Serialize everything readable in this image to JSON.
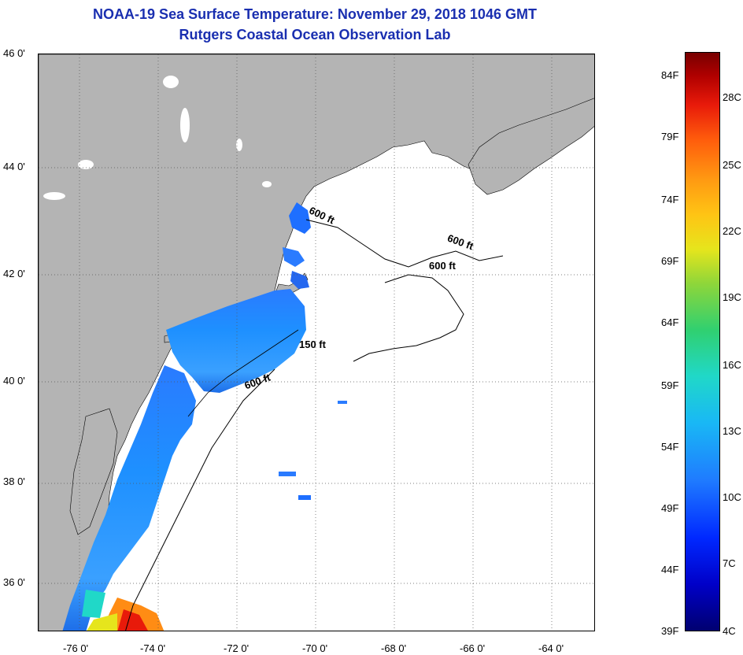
{
  "title": {
    "line1": "NOAA-19 Sea Surface Temperature:  November 29, 2018 1046 GMT",
    "line2": "Rutgers Coastal Ocean Observation Lab"
  },
  "map": {
    "lon_range": [
      -77,
      -63
    ],
    "lat_range": [
      35,
      46
    ],
    "lat_labels": [
      "46 0'",
      "44 0'",
      "42 0'",
      "40 0'",
      "38 0'",
      "36 0'"
    ],
    "lon_labels": [
      "-76 0'",
      "-74 0'",
      "-72 0'",
      "-70 0'",
      "-68 0'",
      "-66 0'",
      "-64 0'"
    ],
    "contour_labels": [
      "600 ft",
      "600 ft",
      "600 ft",
      "150 ft",
      "600 ft"
    ],
    "colors": {
      "land": "#b4b4b4",
      "ocean_no_data": "#ffffff",
      "title": "#1a2fb0"
    }
  },
  "colorbar": {
    "fahrenheit_labels": [
      "84F",
      "79F",
      "74F",
      "69F",
      "64F",
      "59F",
      "54F",
      "49F",
      "44F",
      "39F"
    ],
    "celsius_labels": [
      "28C",
      "25C",
      "22C",
      "19C",
      "16C",
      "13C",
      "10C",
      "7C",
      "4C"
    ],
    "range_f": [
      39,
      86
    ]
  }
}
